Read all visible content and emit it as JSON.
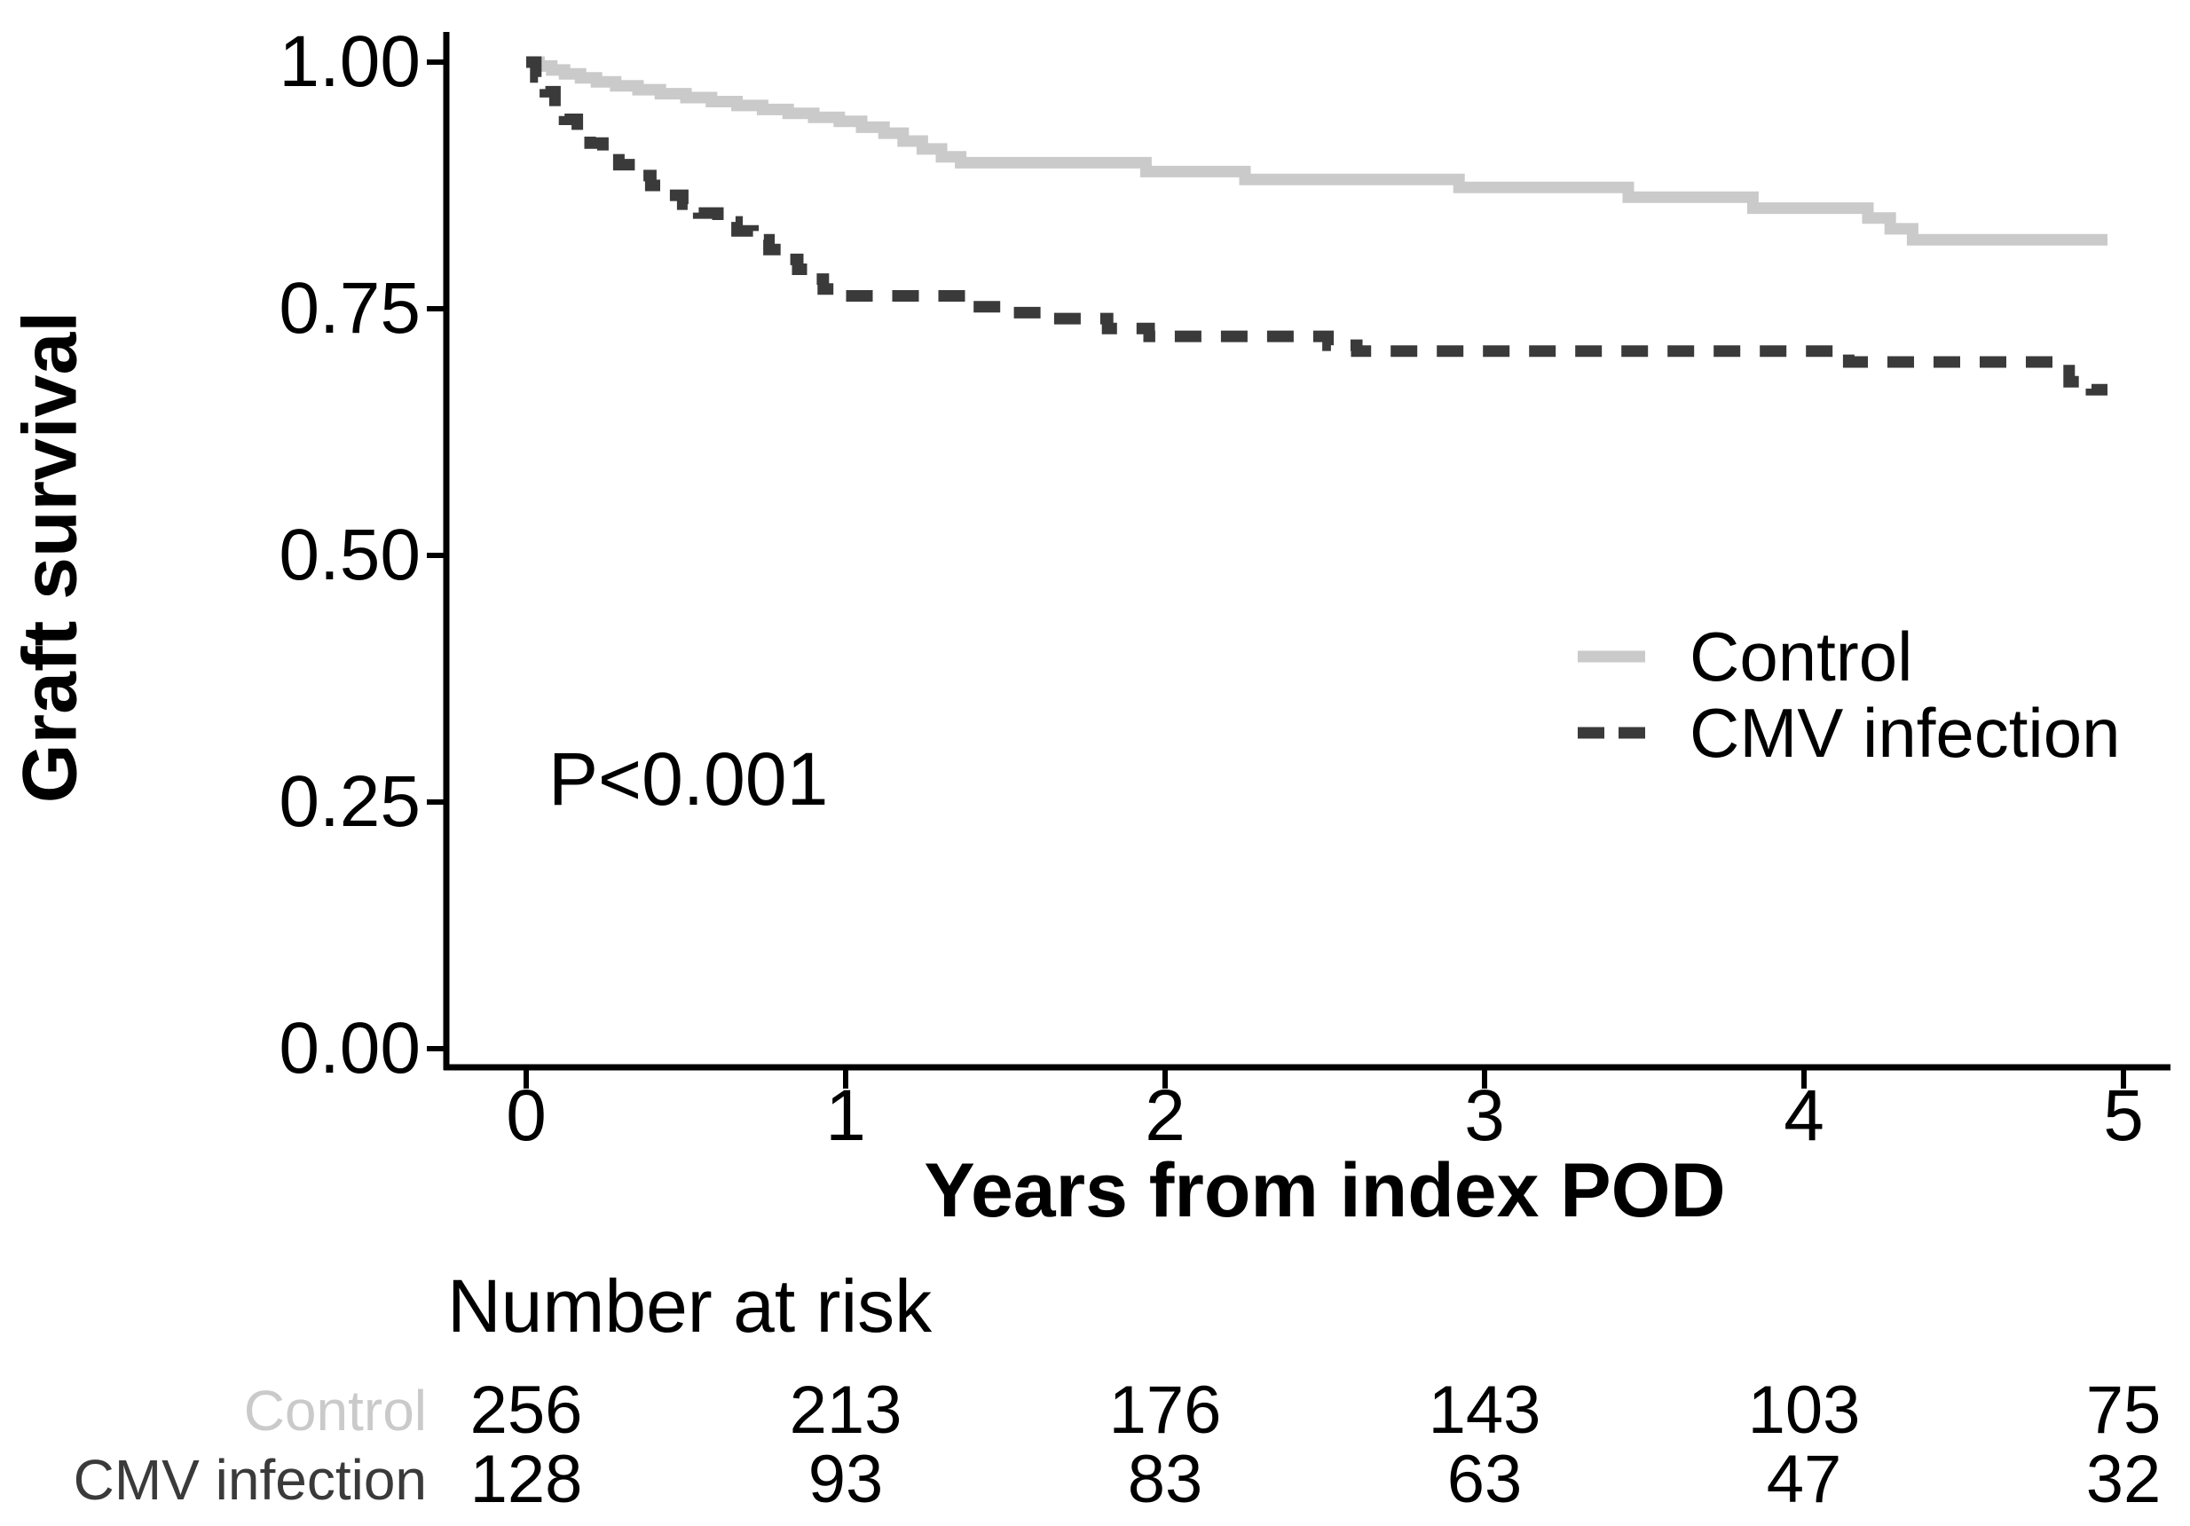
{
  "chart_data": {
    "type": "line",
    "subtype": "kaplan-meier-step",
    "title": "",
    "xlabel": "Years from index POD",
    "ylabel": "Graft survival",
    "annotation": "P<0.001",
    "xlim": [
      0,
      5
    ],
    "ylim": [
      0,
      1
    ],
    "grid": false,
    "legend_position": "right-middle",
    "x_ticks": [
      0,
      1,
      2,
      3,
      4,
      5
    ],
    "x_tick_labels": [
      "0",
      "1",
      "2",
      "3",
      "4",
      "5"
    ],
    "y_ticks": [
      1.0,
      0.75,
      0.5,
      0.25,
      0.0
    ],
    "y_tick_labels": [
      "1.00",
      "0.75",
      "0.50",
      "0.25",
      "0.00"
    ],
    "axis_color": "#000000",
    "series": [
      {
        "name": "Control",
        "color": "#cacaca",
        "line_style": "solid",
        "points": [
          [
            0,
            1.0
          ],
          [
            0.04,
            0.996
          ],
          [
            0.08,
            0.992
          ],
          [
            0.12,
            0.988
          ],
          [
            0.17,
            0.984
          ],
          [
            0.22,
            0.98
          ],
          [
            0.28,
            0.976
          ],
          [
            0.35,
            0.972
          ],
          [
            0.42,
            0.968
          ],
          [
            0.5,
            0.964
          ],
          [
            0.58,
            0.96
          ],
          [
            0.66,
            0.956
          ],
          [
            0.74,
            0.952
          ],
          [
            0.82,
            0.948
          ],
          [
            0.9,
            0.944
          ],
          [
            0.98,
            0.94
          ],
          [
            1.05,
            0.934
          ],
          [
            1.12,
            0.928
          ],
          [
            1.18,
            0.92
          ],
          [
            1.24,
            0.912
          ],
          [
            1.3,
            0.904
          ],
          [
            1.36,
            0.898
          ],
          [
            1.94,
            0.889
          ],
          [
            2.25,
            0.881
          ],
          [
            2.92,
            0.873
          ],
          [
            3.45,
            0.863
          ],
          [
            3.84,
            0.852
          ],
          [
            4.2,
            0.842
          ],
          [
            4.27,
            0.831
          ],
          [
            4.34,
            0.82
          ],
          [
            4.95,
            0.82
          ]
        ]
      },
      {
        "name": "CMV infection",
        "color": "#3a3a3a",
        "line_style": "dashed",
        "points": [
          [
            0,
            1.0
          ],
          [
            0.03,
            0.985
          ],
          [
            0.06,
            0.97
          ],
          [
            0.09,
            0.955
          ],
          [
            0.12,
            0.942
          ],
          [
            0.16,
            0.93
          ],
          [
            0.2,
            0.918
          ],
          [
            0.24,
            0.907
          ],
          [
            0.29,
            0.896
          ],
          [
            0.34,
            0.885
          ],
          [
            0.39,
            0.875
          ],
          [
            0.44,
            0.865
          ],
          [
            0.49,
            0.856
          ],
          [
            0.54,
            0.847
          ],
          [
            0.6,
            0.838
          ],
          [
            0.66,
            0.829
          ],
          [
            0.71,
            0.82
          ],
          [
            0.76,
            0.81
          ],
          [
            0.81,
            0.8
          ],
          [
            0.85,
            0.79
          ],
          [
            0.89,
            0.78
          ],
          [
            0.93,
            0.77
          ],
          [
            0.97,
            0.763
          ],
          [
            1.38,
            0.752
          ],
          [
            1.5,
            0.746
          ],
          [
            1.62,
            0.74
          ],
          [
            1.82,
            0.73
          ],
          [
            1.95,
            0.722
          ],
          [
            2.51,
            0.713
          ],
          [
            2.6,
            0.707
          ],
          [
            4.14,
            0.696
          ],
          [
            4.83,
            0.676
          ],
          [
            4.9,
            0.668
          ],
          [
            4.95,
            0.668
          ]
        ]
      }
    ]
  },
  "risk_table": {
    "title": "Number at risk",
    "time_points": [
      0,
      1,
      2,
      3,
      4,
      5
    ],
    "rows": [
      {
        "label": "Control",
        "color": "#cacaca",
        "counts": [
          "256",
          "213",
          "176",
          "143",
          "103",
          "75"
        ]
      },
      {
        "label": "CMV infection",
        "color": "#3a3a3a",
        "counts": [
          "128",
          "93",
          "83",
          "63",
          "47",
          "32"
        ]
      }
    ]
  },
  "colors": {
    "background": "#ffffff",
    "axis": "#000000",
    "text": "#000000",
    "control_series": "#cacaca",
    "cmv_series": "#3a3a3a"
  }
}
